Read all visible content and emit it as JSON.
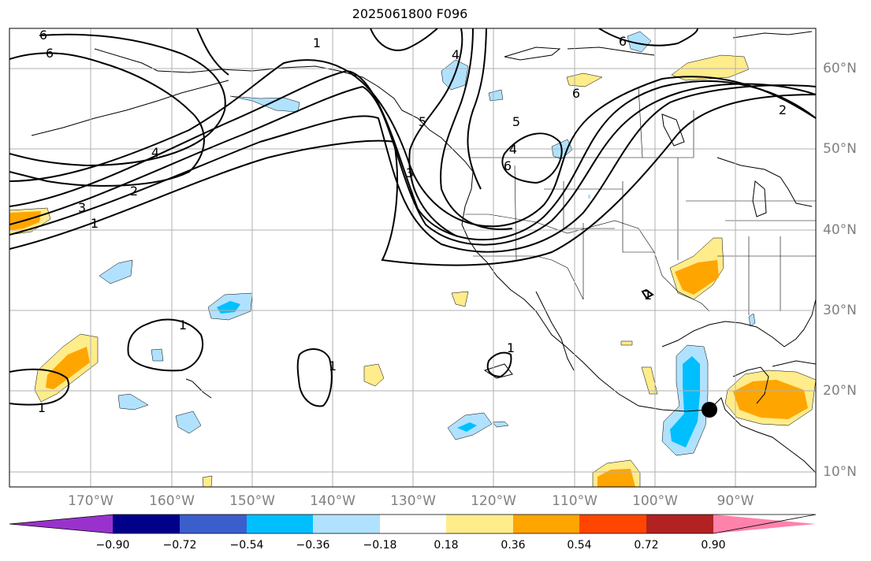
{
  "title": "2025061800 F096",
  "lat_labels": [
    "60°N",
    "50°N",
    "40°N",
    "30°N",
    "20°N",
    "10°N"
  ],
  "lon_labels": [
    "170°W",
    "160°W",
    "150°W",
    "140°W",
    "130°W",
    "120°W",
    "110°W",
    "100°W",
    "90°W"
  ],
  "contour_labels": [
    "6",
    "6",
    "5",
    "4",
    "4",
    "3",
    "2",
    "1",
    "1",
    "1",
    "1",
    "1",
    "1",
    "3",
    "4",
    "5",
    "6",
    "6",
    "2",
    "6",
    "1"
  ],
  "colorbar": {
    "tick_labels": [
      "−0.90",
      "−0.72",
      "−0.54",
      "−0.36",
      "−0.18",
      "0.18",
      "0.36",
      "0.54",
      "0.72",
      "0.90"
    ],
    "colors": [
      "#9932cc",
      "#00008b",
      "#3a5fcd",
      "#00bfff",
      "#b0e2ff",
      "#ffffff",
      "#ffec8b",
      "#ffa500",
      "#ff4500",
      "#b22222",
      "#ff82ab"
    ]
  },
  "marker": {
    "color": "#000000"
  }
}
